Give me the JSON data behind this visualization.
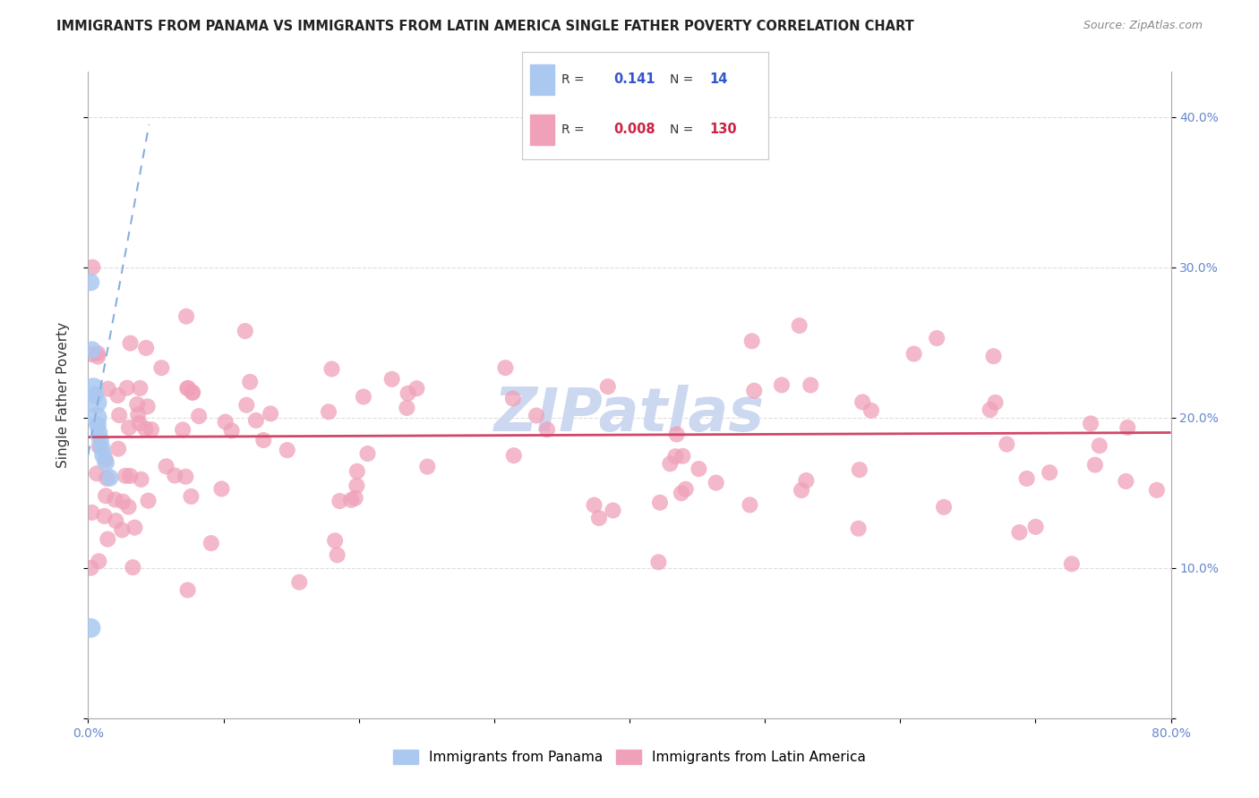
{
  "title": "IMMIGRANTS FROM PANAMA VS IMMIGRANTS FROM LATIN AMERICA SINGLE FATHER POVERTY CORRELATION CHART",
  "source": "Source: ZipAtlas.com",
  "ylabel": "Single Father Poverty",
  "xlim": [
    0.0,
    0.8
  ],
  "ylim": [
    0.0,
    0.43
  ],
  "yticks": [
    0.0,
    0.1,
    0.2,
    0.3,
    0.4
  ],
  "ytick_labels": [
    "",
    "10.0%",
    "20.0%",
    "30.0%",
    "40.0%"
  ],
  "xticks": [
    0.0,
    0.1,
    0.2,
    0.3,
    0.4,
    0.5,
    0.6,
    0.7,
    0.8
  ],
  "legend_blue_R": "0.141",
  "legend_blue_N": "14",
  "legend_pink_R": "0.008",
  "legend_pink_N": "130",
  "legend_label_blue": "Immigrants from Panama",
  "legend_label_pink": "Immigrants from Latin America",
  "watermark": "ZIPatlas",
  "blue_color": "#aac8f0",
  "blue_line_color": "#8aaede",
  "pink_color": "#f0a0b8",
  "pink_line_color": "#d04868",
  "background_color": "#ffffff",
  "grid_color": "#dddddd",
  "title_color": "#222222",
  "source_color": "#888888",
  "tick_color": "#6688cc",
  "watermark_color": "#ccd8f0",
  "blue_scatter_x": [
    0.002,
    0.003,
    0.004,
    0.005,
    0.006,
    0.006,
    0.007,
    0.008,
    0.009,
    0.01,
    0.011,
    0.013,
    0.016,
    0.002
  ],
  "blue_scatter_y": [
    0.29,
    0.245,
    0.22,
    0.215,
    0.21,
    0.2,
    0.195,
    0.19,
    0.185,
    0.18,
    0.175,
    0.17,
    0.16,
    0.06
  ],
  "blue_scatter_sizes": [
    200,
    200,
    250,
    200,
    300,
    300,
    200,
    200,
    200,
    200,
    200,
    200,
    200,
    250
  ],
  "blue_line_x": [
    0.0,
    0.045
  ],
  "blue_line_y": [
    0.175,
    0.395
  ],
  "pink_line_x_start": 0.0,
  "pink_line_x_end": 0.8,
  "pink_line_y_start": 0.187,
  "pink_line_y_end": 0.19
}
